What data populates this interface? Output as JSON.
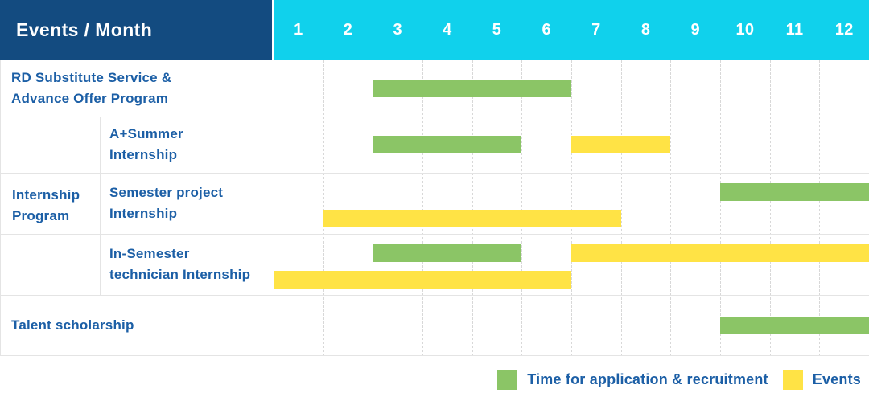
{
  "title": "Events / Month",
  "months": [
    "1",
    "2",
    "3",
    "4",
    "5",
    "6",
    "7",
    "8",
    "9",
    "10",
    "11",
    "12"
  ],
  "colors": {
    "header_bg": "#134b80",
    "months_bg": "#10d1ec",
    "label_text": "#1c5fa6",
    "application_bar": "#8bc566",
    "events_bar": "#ffe345",
    "grid_solid": "#e4e4e4",
    "grid_dashed": "#d8d8d8"
  },
  "legend": {
    "items": [
      {
        "key": "application",
        "label": "Time for application & recruitment",
        "color": "#8bc566"
      },
      {
        "key": "events",
        "label": "Events",
        "color": "#ffe345"
      }
    ]
  },
  "chart_data": {
    "type": "gantt",
    "title": "Events / Month",
    "x_axis": {
      "label": "Month",
      "ticks": [
        "1",
        "2",
        "3",
        "4",
        "5",
        "6",
        "7",
        "8",
        "9",
        "10",
        "11",
        "12"
      ],
      "range": [
        1,
        12
      ]
    },
    "series_legend": [
      {
        "key": "application",
        "label": "Time for application & recruitment",
        "color": "#8bc566"
      },
      {
        "key": "events",
        "label": "Events",
        "color": "#ffe345"
      }
    ],
    "group": {
      "id": "internship-program",
      "label": "Internship Program",
      "label_lines": [
        "Internship",
        "Program"
      ],
      "covers_row_indexes": [
        1,
        2,
        3
      ]
    },
    "rows": [
      {
        "id": "rd-substitute-service",
        "group": null,
        "label": "RD Substitute Service & Advance Offer Program",
        "label_lines": [
          "RD Substitute Service &",
          "Advance Offer Program"
        ],
        "lanes": [
          [
            {
              "series": "application",
              "start_month": 3,
              "end_month": 6
            }
          ]
        ]
      },
      {
        "id": "a-summer-internship",
        "group": "Internship Program",
        "label": "A+Summer Internship",
        "label_lines": [
          "A+Summer",
          "Internship"
        ],
        "lanes": [
          [
            {
              "series": "application",
              "start_month": 3,
              "end_month": 5
            },
            {
              "series": "events",
              "start_month": 7,
              "end_month": 8
            }
          ]
        ]
      },
      {
        "id": "semester-project-internship",
        "group": "Internship Program",
        "label": "Semester project Internship",
        "label_lines": [
          "Semester project",
          "Internship"
        ],
        "lanes": [
          [
            {
              "series": "application",
              "start_month": 10,
              "end_month": 12
            }
          ],
          [
            {
              "series": "events",
              "start_month": 2,
              "end_month": 7
            }
          ]
        ]
      },
      {
        "id": "in-semester-technician-internship",
        "group": "Internship Program",
        "label": "In-Semester technician Internship",
        "label_lines": [
          "In-Semester",
          "technician Internship"
        ],
        "lanes": [
          [
            {
              "series": "application",
              "start_month": 3,
              "end_month": 5
            },
            {
              "series": "events",
              "start_month": 7,
              "end_month": 12
            }
          ],
          [
            {
              "series": "events",
              "start_month": 1,
              "end_month": 6
            }
          ]
        ]
      },
      {
        "id": "talent-scholarship",
        "group": null,
        "label": "Talent scholarship",
        "label_lines": [
          "Talent scholarship"
        ],
        "lanes": [
          [
            {
              "series": "application",
              "start_month": 10,
              "end_month": 12
            }
          ]
        ]
      }
    ]
  }
}
